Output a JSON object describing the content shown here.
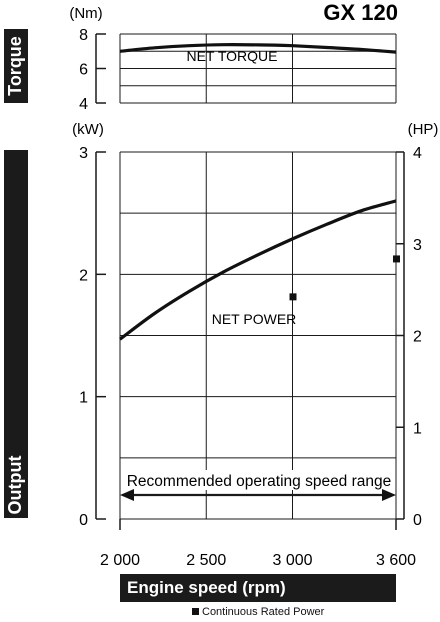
{
  "chart_data": {
    "type": "line",
    "title": "GX 120",
    "xlabel": "Engine speed (rpm)",
    "x_ticks": [
      2000,
      2500,
      3000,
      3600
    ],
    "x_tick_labels": [
      "2 000",
      "2 500",
      "3 000",
      "3 600"
    ],
    "xlim": [
      2000,
      3600
    ],
    "grid": true,
    "torque_panel": {
      "axis_title": "Torque",
      "unit": "(Nm)",
      "ylim": [
        4,
        8
      ],
      "y_ticks": [
        4,
        6,
        8
      ],
      "y_tick_labels": [
        "4",
        "6",
        "8"
      ],
      "series": [
        {
          "name": "NET TORQUE",
          "x": [
            2000,
            2200,
            2400,
            2600,
            2800,
            3000,
            3200,
            3400,
            3600
          ],
          "y": [
            7.0,
            7.2,
            7.32,
            7.38,
            7.37,
            7.32,
            7.22,
            7.1,
            6.95
          ]
        }
      ]
    },
    "power_panel": {
      "axis_title": "Output",
      "unit_left": "(kW)",
      "unit_right": "(HP)",
      "ylim": [
        0,
        3
      ],
      "y_ticks_left": [
        0,
        1,
        2,
        3
      ],
      "y_tick_labels_left": [
        "0",
        "1",
        "2",
        "3"
      ],
      "ylim_right": [
        0,
        4
      ],
      "y_ticks_right": [
        0,
        1,
        2,
        3,
        4
      ],
      "y_tick_labels_right": [
        "0",
        "1",
        "2",
        "3",
        "4"
      ],
      "series": [
        {
          "name": "NET POWER",
          "x": [
            2000,
            2200,
            2400,
            2600,
            2800,
            3000,
            3200,
            3400,
            3600
          ],
          "y": [
            1.47,
            1.68,
            1.86,
            2.02,
            2.16,
            2.29,
            2.41,
            2.52,
            2.6
          ]
        }
      ],
      "continuous_rated_power": [
        {
          "x": 3000,
          "y": 1.82
        },
        {
          "x": 3600,
          "y": 2.13
        }
      ],
      "annotation": "Recommended operating speed range",
      "annotation_range": [
        2000,
        3600
      ]
    },
    "legend": {
      "marker": "square",
      "label": "Continuous Rated Power"
    }
  }
}
